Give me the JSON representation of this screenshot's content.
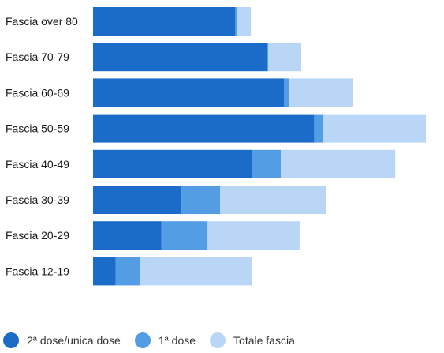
{
  "chart_data": {
    "type": "bar",
    "orientation": "horizontal",
    "stacked": true,
    "categories": [
      "Fascia over 80",
      "Fascia 70-79",
      "Fascia 60-69",
      "Fascia 50-59",
      "Fascia 40-49",
      "Fascia 30-39",
      "Fascia 20-29",
      "Fascia 12-19"
    ],
    "series": [
      {
        "name": "2ª dose/unica dose",
        "color": "#1b6cc9",
        "values": [
          4.5,
          5.5,
          6.05,
          7.01,
          5.03,
          2.8,
          2.17,
          0.72
        ]
      },
      {
        "name": "1ª dose",
        "color": "#539de4",
        "values": [
          0.05,
          0.05,
          0.17,
          0.28,
          0.92,
          1.23,
          1.45,
          0.77
        ]
      },
      {
        "name": "Totale fascia",
        "color": "#b9d6f6",
        "values": [
          0.45,
          1.05,
          2.03,
          3.26,
          3.63,
          3.37,
          2.95,
          3.56
        ]
      }
    ],
    "xlim": [
      0,
      10.5
    ],
    "grid": false,
    "legend_position": "bottom-left",
    "title": "",
    "xlabel": "",
    "ylabel": ""
  }
}
